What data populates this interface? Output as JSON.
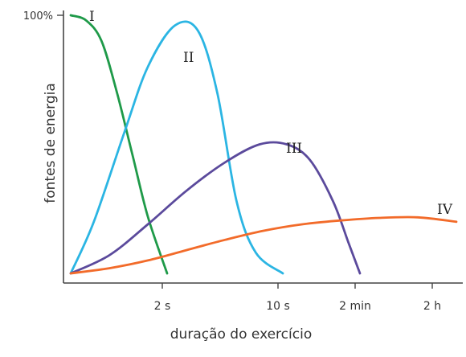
{
  "chart_data": {
    "type": "line",
    "title": "",
    "xlabel": "duração do exercício",
    "ylabel": "fontes de energia",
    "y_tick_labels": [
      {
        "label": "100%",
        "value": 100
      }
    ],
    "x_tick_labels": [
      "2 s",
      "10 s",
      "2 min",
      "2 h"
    ],
    "xlim": [
      0,
      10
    ],
    "ylim": [
      0,
      100
    ],
    "grid": false,
    "legend": "none",
    "series": [
      {
        "name": "I",
        "color": "#1f9a49",
        "points": [
          [
            0,
            100
          ],
          [
            0.4,
            98
          ],
          [
            0.8,
            90
          ],
          [
            1.2,
            70
          ],
          [
            1.6,
            46
          ],
          [
            2.0,
            22
          ],
          [
            2.5,
            0
          ]
        ]
      },
      {
        "name": "II",
        "color": "#2bb5e3",
        "points": [
          [
            0,
            0
          ],
          [
            0.6,
            20
          ],
          [
            1.4,
            55
          ],
          [
            2.0,
            80
          ],
          [
            2.7,
            96
          ],
          [
            3.3,
            94
          ],
          [
            3.8,
            70
          ],
          [
            4.3,
            28
          ],
          [
            4.8,
            8
          ],
          [
            5.5,
            0
          ]
        ]
      },
      {
        "name": "III",
        "color": "#5b4a9c",
        "points": [
          [
            0,
            0
          ],
          [
            1.0,
            7
          ],
          [
            2.0,
            19
          ],
          [
            3.0,
            32
          ],
          [
            4.0,
            43
          ],
          [
            4.9,
            50
          ],
          [
            5.6,
            50
          ],
          [
            6.2,
            44
          ],
          [
            6.8,
            28
          ],
          [
            7.2,
            12
          ],
          [
            7.5,
            0
          ]
        ]
      },
      {
        "name": "IV",
        "color": "#f26b2a",
        "points": [
          [
            0,
            0
          ],
          [
            1.0,
            2
          ],
          [
            2.0,
            5
          ],
          [
            3.0,
            9
          ],
          [
            4.0,
            13
          ],
          [
            5.0,
            16.5
          ],
          [
            6.0,
            19
          ],
          [
            7.0,
            20.5
          ],
          [
            8.0,
            21.5
          ],
          [
            9.0,
            21.7
          ],
          [
            10.0,
            20
          ]
        ]
      }
    ],
    "tick_positions_x": [
      2.5,
      5.5,
      7.5,
      9.5
    ]
  }
}
